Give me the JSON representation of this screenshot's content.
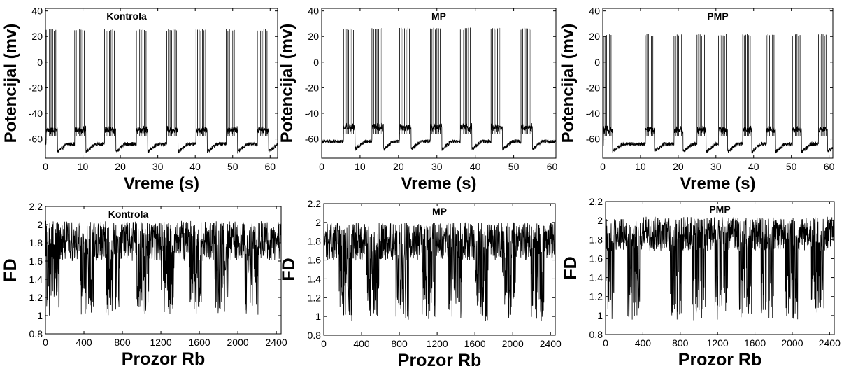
{
  "chart_data": [
    {
      "type": "line",
      "title": "Kontrola",
      "xlabel": "Vreme (s)",
      "ylabel": "Potencijal (mv)",
      "xlim": [
        0,
        62
      ],
      "ylim": [
        -75,
        42
      ],
      "xticks": [
        0,
        10,
        20,
        30,
        40,
        50,
        60
      ],
      "yticks": [
        -60,
        -40,
        -20,
        0,
        20,
        40
      ],
      "signal": {
        "kind": "spikes",
        "burst_starts_s": [
          0.2,
          7.8,
          15.8,
          24.3,
          32.4,
          40.2,
          48.3,
          56.6
        ],
        "spike_peak_mv": 26,
        "baseline_mv": -64,
        "trough_mv": -70,
        "burst_duration_s": 3.0,
        "spikes_per_burst": 7
      }
    },
    {
      "type": "line",
      "title": "MP",
      "xlabel": "Vreme (s)",
      "ylabel": "Potencijal (mv)",
      "xlim": [
        0,
        61
      ],
      "ylim": [
        -75,
        42
      ],
      "xticks": [
        0,
        10,
        20,
        30,
        40,
        50,
        60
      ],
      "yticks": [
        -60,
        -40,
        -20,
        0,
        20,
        40
      ],
      "signal": {
        "kind": "spikes",
        "burst_starts_s": [
          5.7,
          13.1,
          20.3,
          28.3,
          36.1,
          44.1,
          51.9
        ],
        "spike_peak_mv": 27,
        "baseline_mv": -62,
        "trough_mv": -68,
        "burst_duration_s": 3.0,
        "spikes_per_burst": 7
      }
    },
    {
      "type": "line",
      "title": "PMP",
      "xlabel": "Vreme (s)",
      "ylabel": "Potencijal (mv)",
      "xlim": [
        0,
        61
      ],
      "ylim": [
        -75,
        42
      ],
      "xticks": [
        0,
        10,
        20,
        30,
        40,
        50,
        60
      ],
      "yticks": [
        -60,
        -40,
        -20,
        0,
        20,
        40
      ],
      "signal": {
        "kind": "spikes",
        "burst_starts_s": [
          0.2,
          11.3,
          18.9,
          25.0,
          30.7,
          37.1,
          43.4,
          50.3,
          57.2
        ],
        "spike_peak_mv": 22,
        "baseline_mv": -64,
        "trough_mv": -70,
        "burst_duration_s": 2.4,
        "spikes_per_burst": 6
      }
    },
    {
      "type": "line",
      "title": "Kontrola",
      "xlabel": "Prozor Rb",
      "ylabel": "FD",
      "xlim": [
        0,
        2450
      ],
      "ylim": [
        0.8,
        2.2
      ],
      "xticks": [
        0,
        400,
        800,
        1200,
        1600,
        2000,
        2400
      ],
      "yticks": [
        0.8,
        1,
        1.2,
        1.4,
        1.6,
        1.8,
        2,
        2.2
      ],
      "yticklabels": [
        "0.8",
        "1",
        "1.2",
        "1.4",
        "1.6",
        "1.8",
        "2",
        "2.2"
      ],
      "signal": {
        "kind": "fd",
        "mean": 1.82,
        "spread": 0.22,
        "dip_centers": [
          80,
          430,
          700,
          1010,
          1270,
          1560,
          1830,
          2140
        ],
        "dip_min": 1.0
      }
    },
    {
      "type": "line",
      "title": "MP",
      "xlabel": "Prozor Rb",
      "ylabel": "FD",
      "xlim": [
        0,
        2450
      ],
      "ylim": [
        0.8,
        2.2
      ],
      "xticks": [
        0,
        400,
        800,
        1200,
        1600,
        2000,
        2400
      ],
      "yticks": [
        0.8,
        1,
        1.2,
        1.4,
        1.6,
        1.8,
        2,
        2.2
      ],
      "yticklabels": [
        "0.8",
        "1",
        "1.2",
        "1.4",
        "1.6",
        "1.8",
        "2",
        "2.2"
      ],
      "signal": {
        "kind": "fd",
        "mean": 1.8,
        "spread": 0.2,
        "dip_centers": [
          230,
          520,
          830,
          1110,
          1390,
          1670,
          1960,
          2260
        ],
        "dip_min": 0.95
      }
    },
    {
      "type": "line",
      "title": "PMP",
      "xlabel": "Prozor Rb",
      "ylabel": "FD",
      "xlim": [
        0,
        2450
      ],
      "ylim": [
        0.8,
        2.2
      ],
      "xticks": [
        0,
        400,
        800,
        1200,
        1600,
        2000,
        2400
      ],
      "yticks": [
        0.8,
        1,
        1.2,
        1.4,
        1.6,
        1.8,
        2,
        2.2
      ],
      "yticklabels": [
        "0.8",
        "1",
        "1.2",
        "1.4",
        "1.6",
        "1.8",
        "2",
        "2.2"
      ],
      "signal": {
        "kind": "fd",
        "mean": 1.86,
        "spread": 0.18,
        "dip_centers": [
          20,
          300,
          760,
          1000,
          1240,
          1500,
          1730,
          1990,
          2270
        ],
        "dip_min": 0.95
      }
    }
  ]
}
